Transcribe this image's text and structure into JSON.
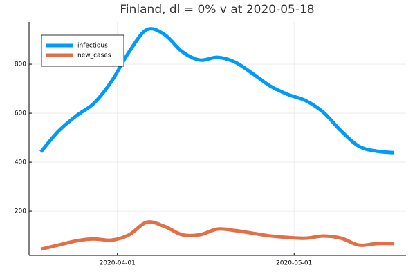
{
  "chart_data": {
    "type": "line",
    "title": "Finland,  dl = 0% v at 2020-05-18",
    "x": [
      "2020-03-19",
      "2020-03-22",
      "2020-03-25",
      "2020-03-28",
      "2020-03-31",
      "2020-04-03",
      "2020-04-06",
      "2020-04-09",
      "2020-04-12",
      "2020-04-15",
      "2020-04-18",
      "2020-04-21",
      "2020-04-24",
      "2020-04-27",
      "2020-04-30",
      "2020-05-03",
      "2020-05-06",
      "2020-05-09",
      "2020-05-12",
      "2020-05-15",
      "2020-05-18"
    ],
    "series": [
      {
        "name": "infectious",
        "color": "#009af9",
        "values": [
          442,
          527,
          589,
          640,
          730,
          851,
          941,
          921,
          851,
          817,
          828,
          808,
          761,
          710,
          676,
          651,
          603,
          527,
          465,
          445,
          439
        ]
      },
      {
        "name": "new_cases",
        "color": "#e26f46",
        "values": [
          45,
          62,
          79,
          87,
          82,
          104,
          155,
          138,
          104,
          104,
          127,
          121,
          110,
          99,
          93,
          90,
          99,
          90,
          62,
          68,
          68
        ]
      }
    ],
    "xlim": [
      "2020-03-17",
      "2020-05-20"
    ],
    "xticks": [
      "2020-04-01",
      "2020-05-01"
    ],
    "ylim": [
      20,
      972
    ],
    "yticks": [
      200,
      400,
      600,
      800
    ],
    "grid": true,
    "legend": "top-left"
  }
}
